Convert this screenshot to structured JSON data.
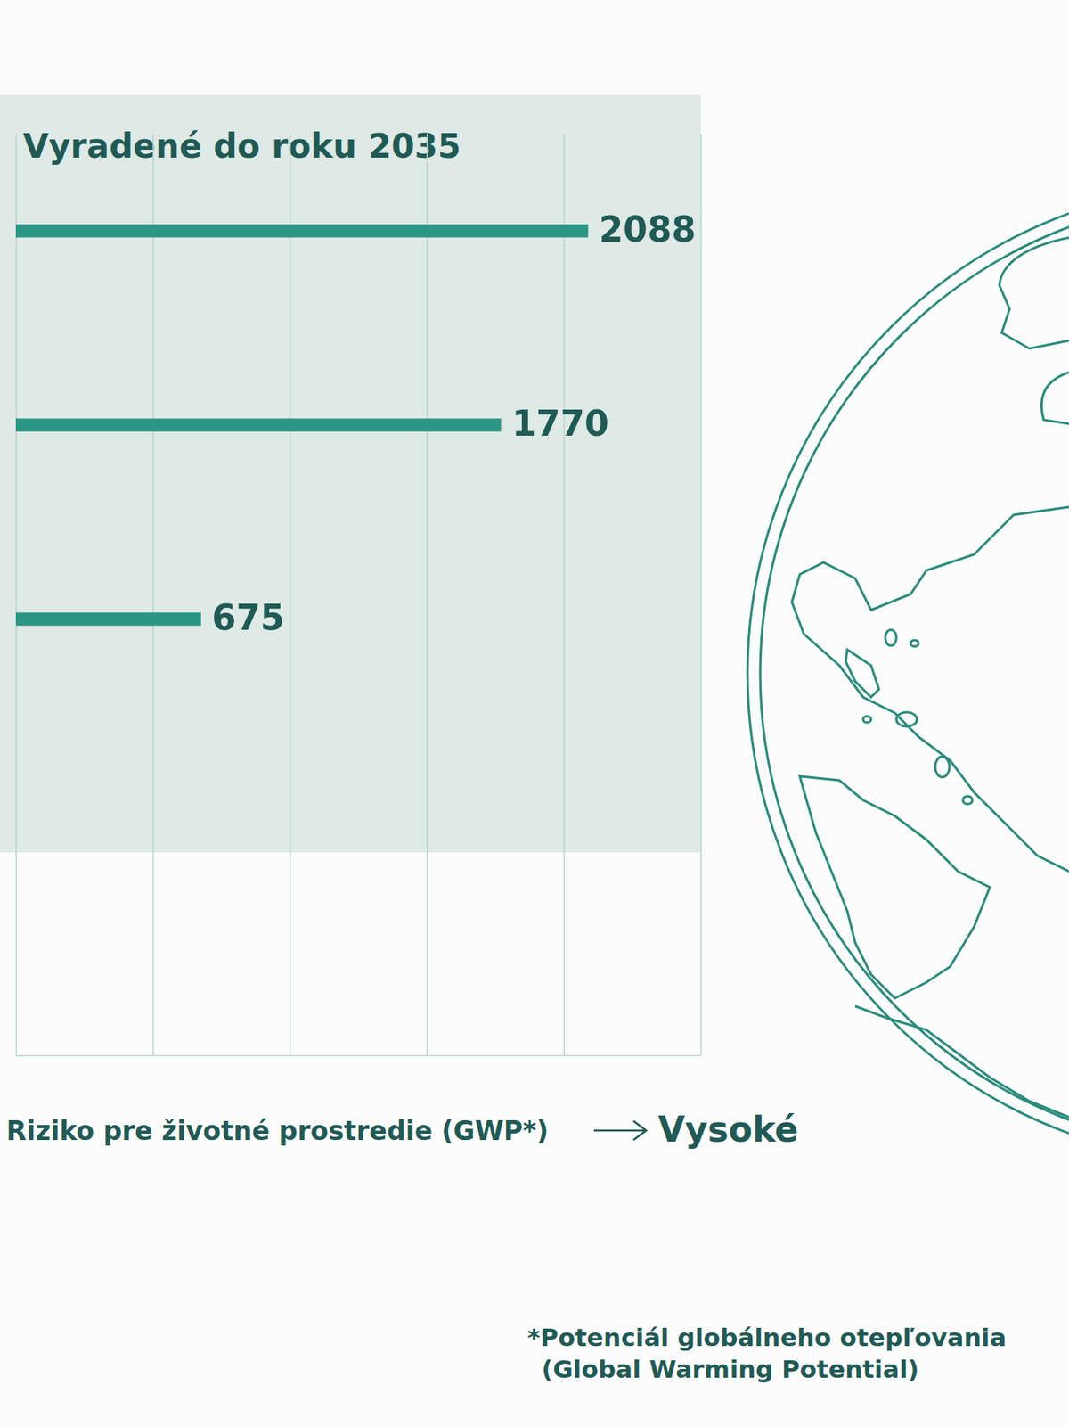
{
  "chart_data": {
    "type": "bar",
    "orientation": "horizontal",
    "title": "Vyradené do roku 2035",
    "xlabel": "Riziko pre životné prostredie (GWP*)",
    "xlabel_high": "Vysoké",
    "footnote": [
      "*Potenciál globálneho otepľovania",
      "(Global Warming Potential)"
    ],
    "categories": [
      null,
      null,
      null
    ],
    "values": [
      2088,
      1770,
      675
    ],
    "color": "#2a9683",
    "xlim": [
      0,
      2500
    ],
    "xticks": [
      0,
      500,
      1000,
      1500,
      2000,
      2500
    ],
    "grid": true,
    "data_labels": true,
    "tick_labels": false
  }
}
